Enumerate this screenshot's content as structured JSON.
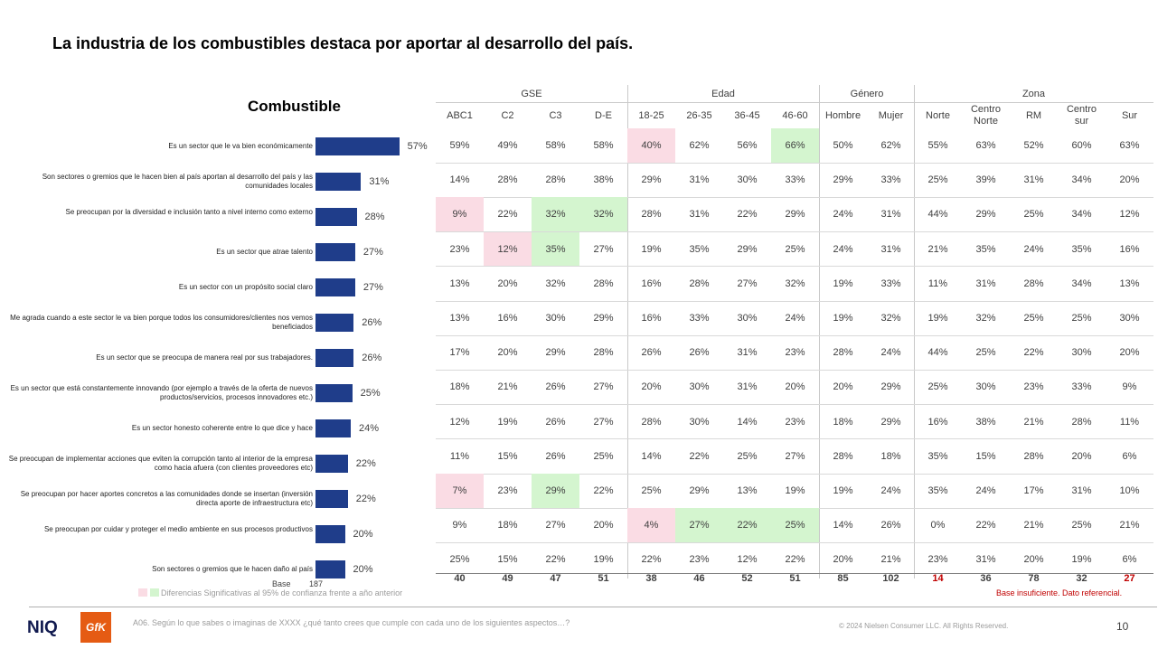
{
  "slide": {
    "title": "La industria de los combustibles destaca por aportar al desarrollo del país.",
    "page_number": "10",
    "question": "A06. Según lo que sabes o imaginas de XXXX ¿qué tanto crees que cumple con cada uno de los siguientes aspectos…?",
    "copyright": "© 2024 Nielsen Consumer LLC. All Rights Reserved.",
    "legend_text": "Diferencias Significativas al 95% de confianza frente a año anterior",
    "note_insufficient": "Base insuficiente. Dato referencial.",
    "logo_niq": "NIQ",
    "logo_gfk": "GfK"
  },
  "colors": {
    "bar": "#1f3d8a",
    "pink": "#fadce4",
    "green": "#d4f5cf",
    "warning": "#c00000"
  },
  "chart_data": {
    "type": "bar",
    "orientation": "horizontal",
    "title": "Combustible",
    "categories": [
      "Es un sector que le va bien económicamente",
      "Son sectores o gremios que le hacen bien al país aportan al desarrollo del país y las comunidades locales",
      "Se preocupan por la diversidad e inclusión tanto a nivel interno como externo",
      "Es un sector que atrae talento",
      "Es un sector con un propósito social claro",
      "Me agrada cuando a este sector le va bien porque todos los consumidores/clientes nos vemos beneficiados",
      "Es un sector que se preocupa de manera real por sus trabajadores.",
      "Es un sector que está constantemente innovando (por ejemplo a través de la oferta de nuevos productos/servicios, procesos innovadores etc.)",
      "Es un sector honesto coherente entre lo que dice y hace",
      "Se preocupan de implementar acciones que eviten la corrupción tanto al interior de la empresa como hacia afuera (con clientes proveedores etc)",
      "Se preocupan por hacer aportes concretos a las comunidades donde se insertan (inversión directa aporte de infraestructura etc)",
      "Se preocupan por cuidar y proteger el medio ambiente en sus procesos productivos",
      "Son sectores o gremios que le hacen daño al país"
    ],
    "values": [
      57,
      31,
      28,
      27,
      27,
      26,
      26,
      25,
      24,
      22,
      22,
      20,
      20
    ],
    "value_labels": [
      "57%",
      "31%",
      "28%",
      "27%",
      "27%",
      "26%",
      "26%",
      "25%",
      "24%",
      "22%",
      "22%",
      "20%",
      "20%"
    ],
    "xlim": [
      0,
      100
    ],
    "base_label": "Base",
    "base_value": "187"
  },
  "table": {
    "groups": [
      {
        "label": "GSE"
      },
      {
        "label": "Edad"
      },
      {
        "label": "Género"
      },
      {
        "label": "Zona"
      }
    ],
    "columns": [
      "ABC1",
      "C2",
      "C3",
      "D-E",
      "18-25",
      "26-35",
      "36-45",
      "46-60",
      "Hombre",
      "Mujer",
      "Norte",
      "Centro\nNorte",
      "RM",
      "Centro\nsur",
      "Sur"
    ],
    "rows": [
      [
        "59%",
        "49%",
        "58%",
        "58%",
        "40%",
        "62%",
        "56%",
        "66%",
        "50%",
        "62%",
        "55%",
        "63%",
        "52%",
        "60%",
        "63%"
      ],
      [
        "14%",
        "28%",
        "28%",
        "38%",
        "29%",
        "31%",
        "30%",
        "33%",
        "29%",
        "33%",
        "25%",
        "39%",
        "31%",
        "34%",
        "20%"
      ],
      [
        "9%",
        "22%",
        "32%",
        "32%",
        "28%",
        "31%",
        "22%",
        "29%",
        "24%",
        "31%",
        "44%",
        "29%",
        "25%",
        "34%",
        "12%"
      ],
      [
        "23%",
        "12%",
        "35%",
        "27%",
        "19%",
        "35%",
        "29%",
        "25%",
        "24%",
        "31%",
        "21%",
        "35%",
        "24%",
        "35%",
        "16%"
      ],
      [
        "13%",
        "20%",
        "32%",
        "28%",
        "16%",
        "28%",
        "27%",
        "32%",
        "19%",
        "33%",
        "11%",
        "31%",
        "28%",
        "34%",
        "13%"
      ],
      [
        "13%",
        "16%",
        "30%",
        "29%",
        "16%",
        "33%",
        "30%",
        "24%",
        "19%",
        "32%",
        "19%",
        "32%",
        "25%",
        "25%",
        "30%"
      ],
      [
        "17%",
        "20%",
        "29%",
        "28%",
        "26%",
        "26%",
        "31%",
        "23%",
        "28%",
        "24%",
        "44%",
        "25%",
        "22%",
        "30%",
        "20%"
      ],
      [
        "18%",
        "21%",
        "26%",
        "27%",
        "20%",
        "30%",
        "31%",
        "20%",
        "20%",
        "29%",
        "25%",
        "30%",
        "23%",
        "33%",
        "9%"
      ],
      [
        "12%",
        "19%",
        "26%",
        "27%",
        "28%",
        "30%",
        "14%",
        "23%",
        "18%",
        "29%",
        "16%",
        "38%",
        "21%",
        "28%",
        "11%"
      ],
      [
        "11%",
        "15%",
        "26%",
        "25%",
        "14%",
        "22%",
        "25%",
        "27%",
        "28%",
        "18%",
        "35%",
        "15%",
        "28%",
        "20%",
        "6%"
      ],
      [
        "7%",
        "23%",
        "29%",
        "22%",
        "25%",
        "29%",
        "13%",
        "19%",
        "19%",
        "24%",
        "35%",
        "24%",
        "17%",
        "31%",
        "10%"
      ],
      [
        "9%",
        "18%",
        "27%",
        "20%",
        "4%",
        "27%",
        "22%",
        "25%",
        "14%",
        "26%",
        "0%",
        "22%",
        "21%",
        "25%",
        "21%"
      ],
      [
        "25%",
        "15%",
        "22%",
        "19%",
        "22%",
        "23%",
        "12%",
        "22%",
        "20%",
        "21%",
        "23%",
        "31%",
        "20%",
        "19%",
        "6%"
      ]
    ],
    "highlights": {
      "pink": [
        [
          0,
          4
        ],
        [
          2,
          0
        ],
        [
          3,
          1
        ],
        [
          10,
          0
        ],
        [
          11,
          4
        ]
      ],
      "green": [
        [
          0,
          7
        ],
        [
          2,
          2
        ],
        [
          2,
          3
        ],
        [
          3,
          2
        ],
        [
          10,
          2
        ],
        [
          11,
          5
        ],
        [
          11,
          6
        ],
        [
          11,
          7
        ]
      ]
    },
    "bases": [
      "40",
      "49",
      "47",
      "51",
      "38",
      "46",
      "52",
      "51",
      "85",
      "102",
      "14",
      "36",
      "78",
      "32",
      "27"
    ],
    "bases_insufficient": [
      10,
      14
    ]
  }
}
